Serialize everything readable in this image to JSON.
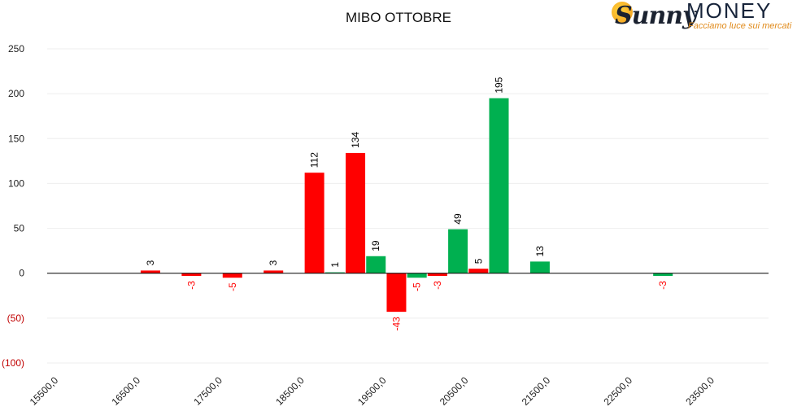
{
  "chart_data": {
    "type": "bar",
    "title": "MIBO OTTOBRE",
    "ylim": [
      -100,
      250
    ],
    "yticks": [
      250,
      200,
      150,
      100,
      50,
      0,
      -50,
      -100
    ],
    "ytick_labels": [
      "250",
      "200",
      "150",
      "100",
      "50",
      "0",
      "(50)",
      "(100)"
    ],
    "x_range": [
      15500,
      24000
    ],
    "xticks": [
      15500,
      16500,
      17500,
      18500,
      19500,
      20500,
      21500,
      22500,
      23500
    ],
    "xtick_labels": [
      "15500,0",
      "16500,0",
      "17500,0",
      "18500,0",
      "19500,0",
      "20500,0",
      "21500,0",
      "22500,0",
      "23500,0"
    ],
    "grid": true,
    "bars": [
      {
        "x": 16500,
        "value": 3,
        "label": "3",
        "color": "#ff0000"
      },
      {
        "x": 17000,
        "value": -3,
        "label": "-3",
        "color": "#ff0000"
      },
      {
        "x": 17500,
        "value": -5,
        "label": "-5",
        "color": "#ff0000"
      },
      {
        "x": 18000,
        "value": 3,
        "label": "3",
        "color": "#ff0000"
      },
      {
        "x": 18500,
        "value": 112,
        "label": "112",
        "color": "#ff0000"
      },
      {
        "x": 18750,
        "value": 1,
        "label": "1",
        "color": "#00b050"
      },
      {
        "x": 19000,
        "value": 134,
        "label": "134",
        "color": "#ff0000"
      },
      {
        "x": 19250,
        "value": 19,
        "label": "19",
        "color": "#00b050"
      },
      {
        "x": 19500,
        "value": -43,
        "label": "-43",
        "color": "#ff0000"
      },
      {
        "x": 19750,
        "value": -5,
        "label": "-5",
        "color": "#00b050"
      },
      {
        "x": 20000,
        "value": -3,
        "label": "-3",
        "color": "#ff0000"
      },
      {
        "x": 20250,
        "value": 49,
        "label": "49",
        "color": "#00b050"
      },
      {
        "x": 20500,
        "value": 5,
        "label": "5",
        "color": "#ff0000"
      },
      {
        "x": 20750,
        "value": 195,
        "label": "195",
        "color": "#00b050"
      },
      {
        "x": 21250,
        "value": 13,
        "label": "13",
        "color": "#00b050"
      },
      {
        "x": 22750,
        "value": -3,
        "label": "-3",
        "color": "#00b050"
      }
    ],
    "colors": {
      "negative_tick_label": "#c00000",
      "negative_data_label": "#ff0000",
      "positive_data_label": "#000000"
    }
  },
  "logo": {
    "brand": "MONEY",
    "script": "Sunny",
    "tagline": "Facciamo luce sui mercati"
  }
}
